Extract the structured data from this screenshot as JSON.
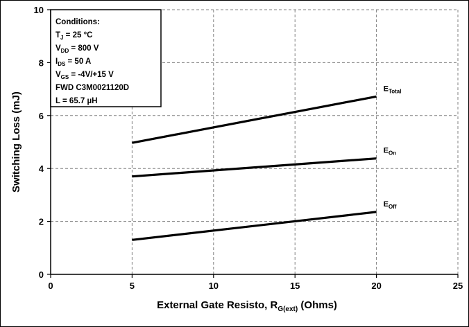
{
  "chart_data": {
    "type": "line",
    "xlabel": {
      "main": "External Gate Resisto, R",
      "sub": "G(ext)",
      "tail": " (Ohms)"
    },
    "ylabel": "Switching Loss (mJ)",
    "xlim": [
      0,
      25
    ],
    "ylim": [
      0,
      10
    ],
    "xticks": [
      0,
      5,
      10,
      15,
      20,
      25
    ],
    "yticks": [
      0,
      2,
      4,
      6,
      8,
      10
    ],
    "grid": true,
    "series": [
      {
        "name": "Total",
        "label_main": "E",
        "label_sub": "Total",
        "x": [
          5,
          20
        ],
        "y": [
          4.97,
          6.72
        ]
      },
      {
        "name": "On",
        "label_main": "E",
        "label_sub": "On",
        "x": [
          5,
          20
        ],
        "y": [
          3.7,
          4.38
        ]
      },
      {
        "name": "Off",
        "label_main": "E",
        "label_sub": "Off",
        "x": [
          5,
          20
        ],
        "y": [
          1.3,
          2.36
        ]
      }
    ],
    "conditions": [
      {
        "main": "Conditions:",
        "sub": "",
        "tail": ""
      },
      {
        "main": "T",
        "sub": "J",
        "tail": " = 25 °C"
      },
      {
        "main": "V",
        "sub": "DD",
        "tail": " = 800 V"
      },
      {
        "main": "I",
        "sub": "DS",
        "tail": " = 50 A"
      },
      {
        "main": "V",
        "sub": "GS",
        "tail": " = -4V/+15 V"
      },
      {
        "main": "FWD C3M0021120D",
        "sub": "",
        "tail": ""
      },
      {
        "main": "L = 65.7 µH",
        "sub": "",
        "tail": ""
      }
    ],
    "colors": {
      "line": "#000000",
      "grid": "#808080",
      "background": "#ffffff"
    }
  }
}
